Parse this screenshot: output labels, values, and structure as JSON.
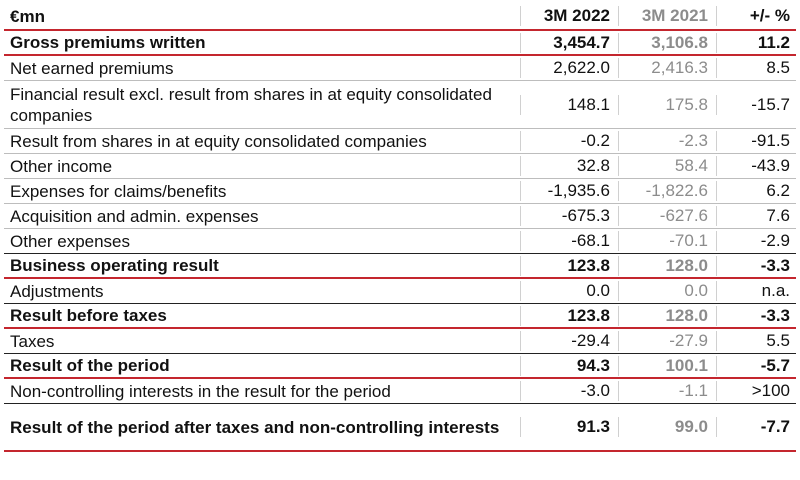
{
  "header": {
    "label": "€mn",
    "col1": "3M 2022",
    "col2": "3M 2021",
    "col3": "+/- %"
  },
  "rows": [
    {
      "label": "Gross premiums written",
      "v2022": "3,454.7",
      "v2021": "3,106.8",
      "change": "11.2",
      "bold": true
    },
    {
      "label": "Net earned premiums",
      "v2022": "2,622.0",
      "v2021": "2,416.3",
      "change": "8.5",
      "bold": false
    },
    {
      "label": "Financial result excl. result from shares in at equity consolidated companies",
      "v2022": "148.1",
      "v2021": "175.8",
      "change": "-15.7",
      "bold": false
    },
    {
      "label": "Result from shares in at equity consolidated companies",
      "v2022": "-0.2",
      "v2021": "-2.3",
      "change": "-91.5",
      "bold": false
    },
    {
      "label": "Other income",
      "v2022": "32.8",
      "v2021": "58.4",
      "change": "-43.9",
      "bold": false
    },
    {
      "label": "Expenses for claims/benefits",
      "v2022": "-1,935.6",
      "v2021": "-1,822.6",
      "change": "6.2",
      "bold": false
    },
    {
      "label": "Acquisition and admin. expenses",
      "v2022": "-675.3",
      "v2021": "-627.6",
      "change": "7.6",
      "bold": false
    },
    {
      "label": "Other expenses",
      "v2022": "-68.1",
      "v2021": "-70.1",
      "change": "-2.9",
      "bold": false
    },
    {
      "label": "Business operating result",
      "v2022": "123.8",
      "v2021": "128.0",
      "change": "-3.3",
      "bold": true
    },
    {
      "label": "Adjustments",
      "v2022": "0.0",
      "v2021": "0.0",
      "change": "n.a.",
      "bold": false
    },
    {
      "label": "Result before taxes",
      "v2022": "123.8",
      "v2021": "128.0",
      "change": "-3.3",
      "bold": true
    },
    {
      "label": "Taxes",
      "v2022": "-29.4",
      "v2021": "-27.9",
      "change": "5.5",
      "bold": false
    },
    {
      "label": "Result of the period",
      "v2022": "94.3",
      "v2021": "100.1",
      "change": "-5.7",
      "bold": true
    },
    {
      "label": "Non-controlling interests in the result for the period",
      "v2022": "-3.0",
      "v2021": "-1.1",
      "change": ">100",
      "bold": false
    },
    {
      "label": "Result of the period after taxes and non-controlling interests",
      "v2022": "91.3",
      "v2021": "99.0",
      "change": "-7.7",
      "bold": true
    }
  ]
}
